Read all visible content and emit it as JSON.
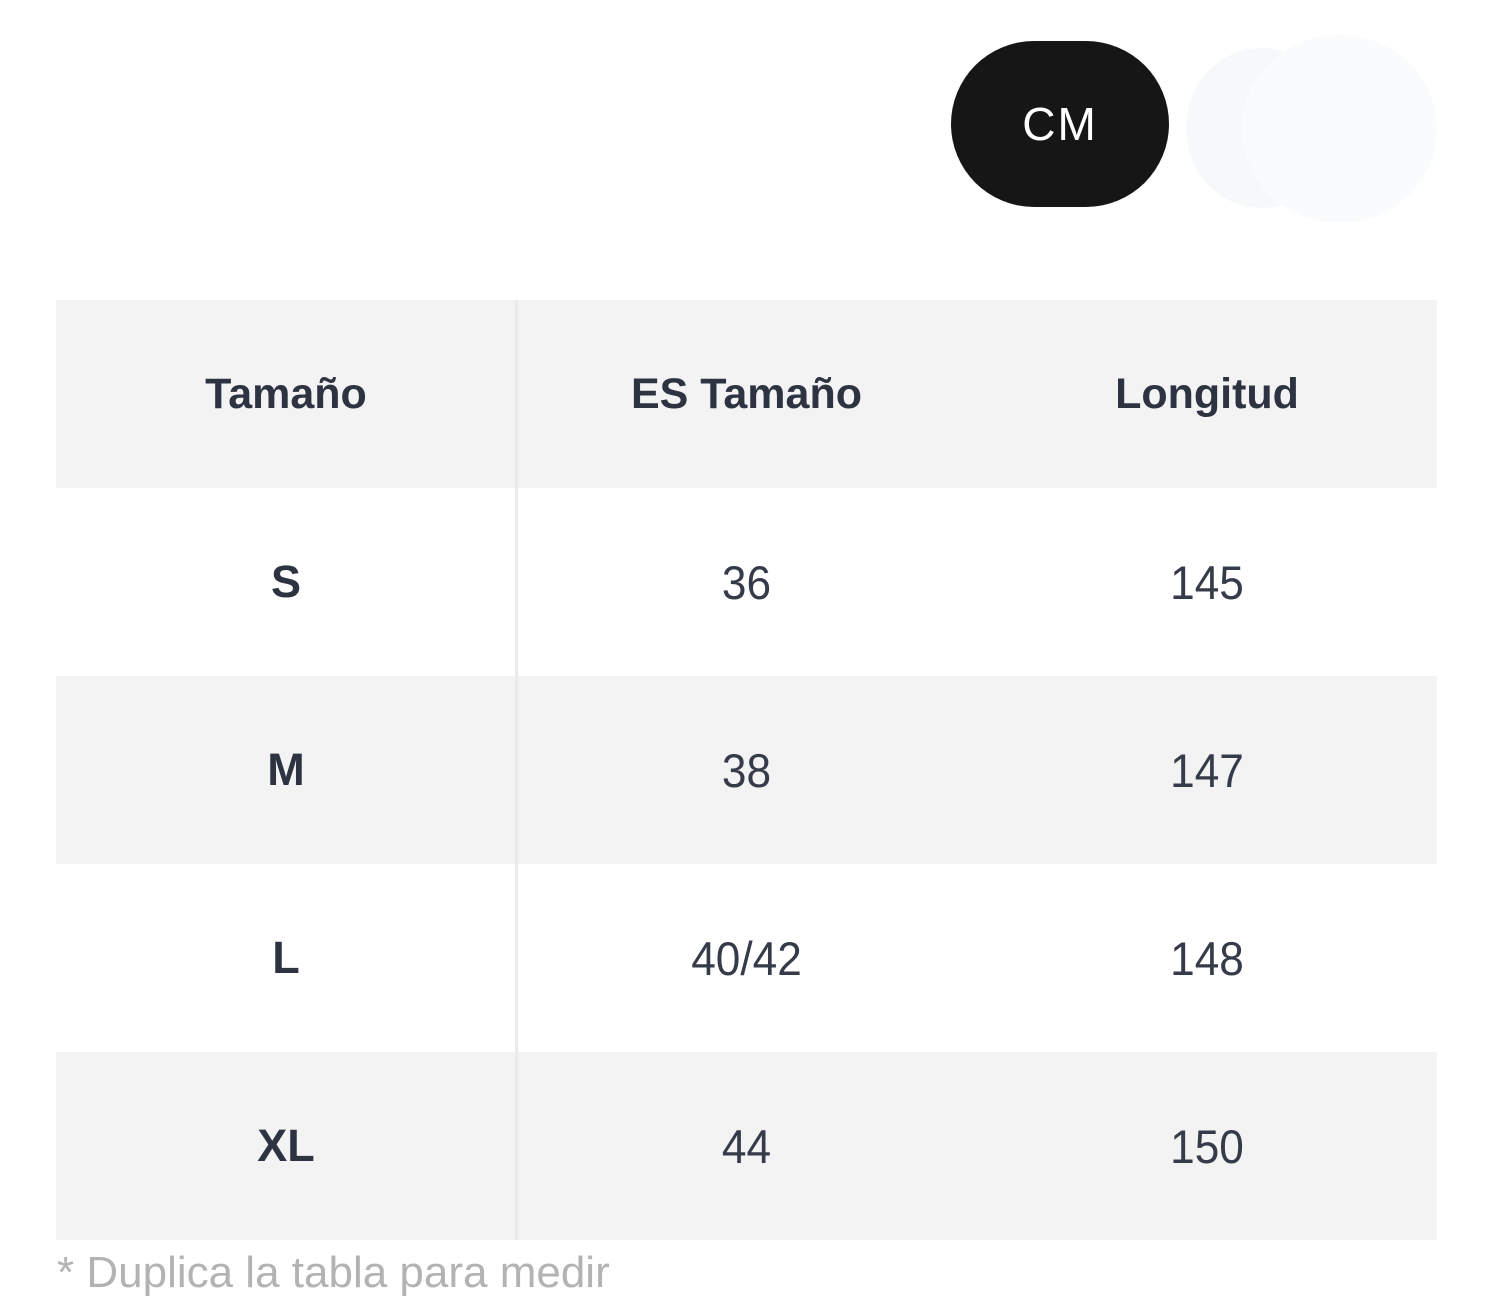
{
  "unit_toggle": {
    "selected_unit": "CM",
    "cm_label": "CM"
  },
  "size_table": {
    "columns": [
      "Tamaño",
      "ES Tamaño",
      "Longitud"
    ],
    "rows": [
      {
        "size": "S",
        "es_size": "36",
        "length": "145"
      },
      {
        "size": "M",
        "es_size": "38",
        "length": "147"
      },
      {
        "size": "L",
        "es_size": "40/42",
        "length": "148"
      },
      {
        "size": "XL",
        "es_size": "44",
        "length": "150"
      }
    ]
  },
  "footnote": {
    "partial_text": "* Duplica la tabla para medir"
  },
  "colors": {
    "pill_bg": "#161616",
    "pill_text": "#ffffff",
    "row_alt_bg": "#f3f3f4",
    "text_dark": "#2e3342",
    "divider": "#ebebed",
    "footnote_text": "#b3b3b3"
  }
}
